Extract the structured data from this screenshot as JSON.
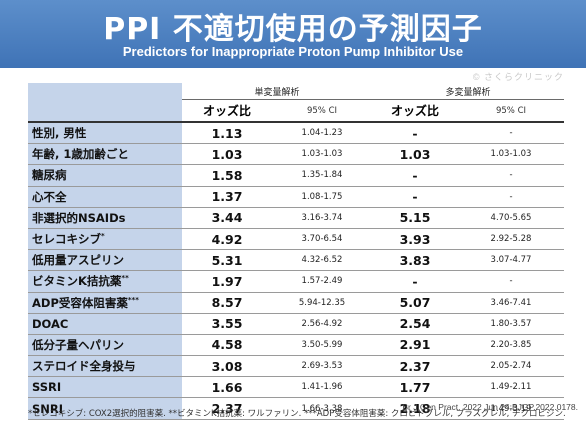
{
  "header": {
    "title": "PPI 不適切使用の予測因子",
    "subtitle": "Predictors for Inappropriate Proton Pump Inhibitor Use"
  },
  "watermark": "© さくらクリニック",
  "table": {
    "group_univariate": "単変量解析",
    "group_multivariate": "多変量解析",
    "col_odds": "オッズ比",
    "col_ci": "95% CI",
    "rows": [
      {
        "label_main": "性別, ",
        "label_bold": "男性",
        "uni_or": "1.13",
        "uni_ci": "1.04-1.23",
        "multi_or": "-",
        "multi_ci": "-"
      },
      {
        "label_main": "年齢, ",
        "label_bold": "1歳加齢ごと",
        "uni_or": "1.03",
        "uni_ci": "1.03-1.03",
        "multi_or": "1.03",
        "multi_ci": "1.03-1.03"
      },
      {
        "label_main": "",
        "label_bold": "糖尿病",
        "uni_or": "1.58",
        "uni_ci": "1.35-1.84",
        "multi_or": "-",
        "multi_ci": "-"
      },
      {
        "label_main": "",
        "label_bold": "心不全",
        "uni_or": "1.37",
        "uni_ci": "1.08-1.75",
        "multi_or": "-",
        "multi_ci": "-"
      },
      {
        "label_main": "",
        "label_bold": "非選択的NSAIDs",
        "uni_or": "3.44",
        "uni_ci": "3.16-3.74",
        "multi_or": "5.15",
        "multi_ci": "4.70-5.65"
      },
      {
        "label_main": "",
        "label_bold": "セレコキシブ",
        "sup": "*",
        "uni_or": "4.92",
        "uni_ci": "3.70-6.54",
        "multi_or": "3.93",
        "multi_ci": "2.92-5.28"
      },
      {
        "label_main": "",
        "label_bold": "低用量アスピリン",
        "uni_or": "5.31",
        "uni_ci": "4.32-6.52",
        "multi_or": "3.83",
        "multi_ci": "3.07-4.77"
      },
      {
        "label_main": "",
        "label_bold": "ビタミンK拮抗薬",
        "sup": "**",
        "uni_or": "1.97",
        "uni_ci": "1.57-2.49",
        "multi_or": "-",
        "multi_ci": "-"
      },
      {
        "label_main": "",
        "label_bold": "ADP受容体阻害薬",
        "sup": "***",
        "uni_or": "8.57",
        "uni_ci": "5.94-12.35",
        "multi_or": "5.07",
        "multi_ci": "3.46-7.41"
      },
      {
        "label_main": "",
        "label_bold": "DOAC",
        "uni_or": "3.55",
        "uni_ci": "2.56-4.92",
        "multi_or": "2.54",
        "multi_ci": "1.80-3.57"
      },
      {
        "label_main": "",
        "label_bold": "低分子量ヘパリン",
        "uni_or": "4.58",
        "uni_ci": "3.50-5.99",
        "multi_or": "2.91",
        "multi_ci": "2.20-3.85"
      },
      {
        "label_main": "",
        "label_bold": "ステロイド全身投与",
        "uni_or": "3.08",
        "uni_ci": "2.69-3.53",
        "multi_or": "2.37",
        "multi_ci": "2.05-2.74"
      },
      {
        "label_main": "",
        "label_bold": "SSRI",
        "uni_or": "1.66",
        "uni_ci": "1.41-1.96",
        "multi_or": "1.77",
        "multi_ci": "1.49-2.11"
      },
      {
        "label_main": "",
        "label_bold": "SNRI",
        "uni_or": "2.37",
        "uni_ci": "1.66-3.38",
        "multi_or": "2.18",
        "multi_ci": "1.49-3.19"
      }
    ]
  },
  "citation": "Br J Gen Pract. 2022 Jun 24;BJGP.2022.0178.",
  "footnote": "*セレコキシブ: COX2選択的阻害薬. **ビタミンK拮抗薬: ワルファリン. ***ADP受容体阻害薬: クロピドグレル, プラスグレル, チクロピジン."
}
